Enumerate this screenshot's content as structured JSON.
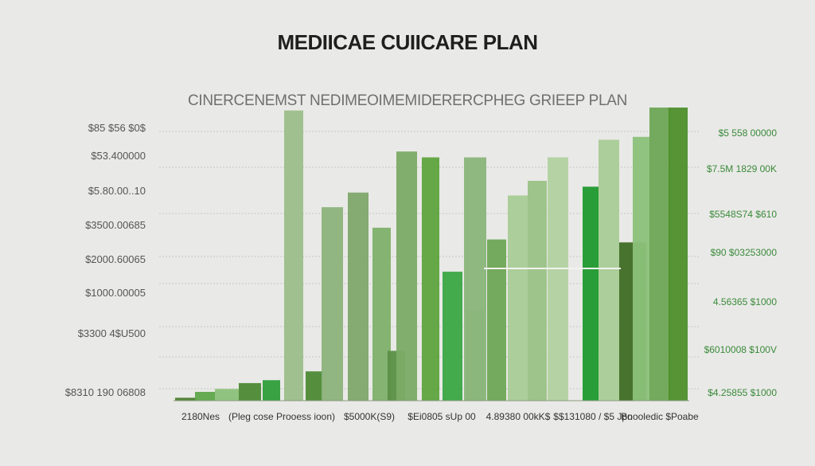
{
  "title": "MEDIICAE CUIICARE PLAN",
  "subtitle": "CINERCENEMST NEDIMEOIMEMIDERERCPHEG GRIEEP PLAN",
  "colors": {
    "background": "#e9e9e7",
    "dark_green": "#4d7f2f",
    "mid_green": "#73a84a",
    "bright_green": "#2f9e3a",
    "pale_green": "#a9c79a",
    "muted_green": "#8cb37c"
  },
  "chart_data": {
    "type": "bar",
    "title": "MEDIICAE CUIICARE PLAN",
    "subtitle": "CINERCENEMST NEDIMEOIMEMIDERERCPHEG GRIEEP PLAN",
    "left_tick_labels": [
      "$85 $56 $0$",
      "$53.400000",
      "$5.80.00..10",
      "$3500.00685",
      "$2000.60065",
      "$1000.00005",
      "$3300 4$U500",
      "$8310 190 06808"
    ],
    "right_tick_labels": [
      "$5 558 00000",
      "$7.5M 1829 00K",
      "$5548S74 $610",
      "$90 $03253000",
      "4.56365 $1000",
      "$6010008 $100V",
      "$4.25855 $1000"
    ],
    "x_tick_labels": [
      "2180Nes",
      "(Pleg cose Prooess ioon)",
      "$5000K(S9)",
      "$Ei0805 sUp 00",
      "4.89380 00kK$",
      "$$131080 / $5 Jpo",
      "Bnooledic $Poabe"
    ],
    "grid": true,
    "y_range": [
      0,
      100
    ],
    "bars": [
      {
        "value": 1,
        "color": "#4d7f2f"
      },
      {
        "value": 3,
        "color": "#5fa74a"
      },
      {
        "value": 4,
        "color": "#8cc17a"
      },
      {
        "value": 6,
        "color": "#4d8a35"
      },
      {
        "value": 7,
        "color": "#2f9e3a"
      },
      {
        "value": 99,
        "color": "#9cbf8a"
      },
      {
        "value": 10,
        "color": "#4d8a35"
      },
      {
        "value": 66,
        "color": "#8cb37c"
      },
      {
        "value": 71,
        "color": "#7fa86b"
      },
      {
        "value": 59,
        "color": "#7fb06a"
      },
      {
        "value": 17,
        "color": "#5a8f45"
      },
      {
        "value": 85,
        "color": "#7bab65"
      },
      {
        "value": 83,
        "color": "#5fa33f"
      },
      {
        "value": 44,
        "color": "#3aa843"
      },
      {
        "value": 31,
        "color": "#a7c994"
      },
      {
        "value": 83,
        "color": "#8ab57a"
      },
      {
        "value": 55,
        "color": "#6ea655"
      },
      {
        "value": 70,
        "color": "#a9cc96"
      },
      {
        "value": 75,
        "color": "#9bc286"
      },
      {
        "value": 83,
        "color": "#b2d1a0"
      },
      {
        "value": 73,
        "color": "#1f9a2e"
      },
      {
        "value": 89,
        "color": "#a9cc96"
      },
      {
        "value": 54,
        "color": "#3f6d24"
      },
      {
        "value": 90,
        "color": "#8cc17a"
      },
      {
        "value": 100,
        "color": "#6ea655"
      },
      {
        "value": 112,
        "color": "#4e8f2c"
      }
    ]
  }
}
